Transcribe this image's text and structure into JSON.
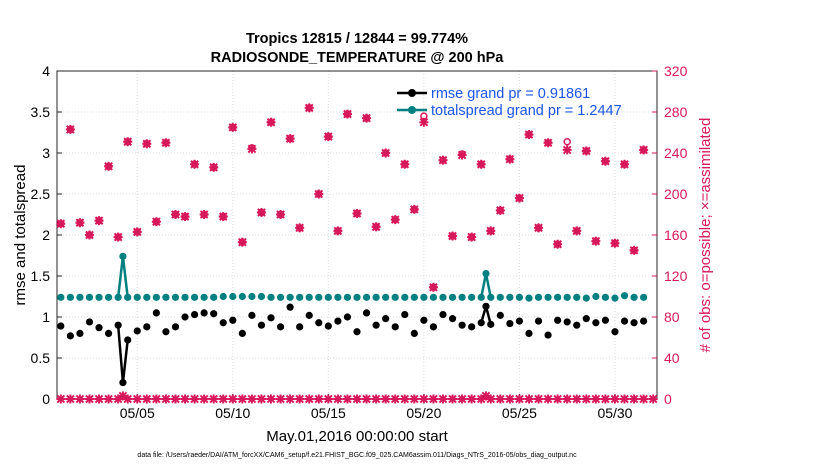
{
  "chart_data": {
    "type": "line",
    "title": "Tropics 12815 / 12844 = 99.774%",
    "subtitle": "RADIOSONDE_TEMPERATURE @ 200 hPa",
    "xlabel": "May.01,2016 00:00:00 start",
    "ylabel_left": "rmse and totalspread",
    "ylabel_right": "# of obs: o=possible; ×=assimilated",
    "footnote": "data file: /Users/raeder/DAI/ATM_forcXX/CAM6_setup/f.e21.FHIST_BGC.f09_025.CAM6assim.011/Diags_NTrS_2016-05/obs_diag_output.nc",
    "x_range": [
      0.8,
      32.2
    ],
    "x_ticks": [
      5,
      10,
      15,
      20,
      25,
      30
    ],
    "x_tick_labels": [
      "05/05",
      "05/10",
      "05/15",
      "05/20",
      "05/25",
      "05/30"
    ],
    "y_left_range": [
      0,
      4
    ],
    "y_left_ticks": [
      "0",
      "0.5",
      "1",
      "1.5",
      "2",
      "2.5",
      "3",
      "3.5",
      "4"
    ],
    "y_right_range": [
      0,
      320
    ],
    "y_right_ticks": [
      "0",
      "40",
      "80",
      "120",
      "160",
      "200",
      "240",
      "280",
      "320"
    ],
    "grid": true,
    "legend": {
      "position": "top-right",
      "rmse_label": "rmse grand pr = 0.91861",
      "spread_label": "totalspread grand pr = 1.2447"
    },
    "colors": {
      "rmse": "#000000",
      "totalspread": "#008080",
      "obs": "#d7185a",
      "legend_text": "#1a55e6"
    },
    "series": [
      {
        "name": "rmse grand pr = 0.91861",
        "axis": "left",
        "x": [
          1,
          1.5,
          2,
          2.5,
          3,
          3.5,
          4,
          4.25,
          4.5,
          5,
          5.5,
          6,
          6.5,
          7,
          7.5,
          8,
          8.5,
          9,
          9.5,
          10,
          10.5,
          11,
          11.5,
          12,
          12.5,
          13,
          13.5,
          14,
          14.5,
          15,
          15.5,
          16,
          16.5,
          17,
          17.5,
          18,
          18.5,
          19,
          19.5,
          20,
          20.5,
          21,
          21.5,
          22,
          22.5,
          23,
          23.25,
          23.5,
          24,
          24.5,
          25,
          25.5,
          26,
          26.5,
          27,
          27.5,
          28,
          28.5,
          29,
          29.5,
          30,
          30.5,
          31,
          31.5
        ],
        "values": [
          0.89,
          0.77,
          0.8,
          0.94,
          0.87,
          0.8,
          0.9,
          0.2,
          0.72,
          0.83,
          0.88,
          1.05,
          0.82,
          0.88,
          1,
          1.03,
          1.05,
          1.04,
          0.93,
          0.96,
          0.8,
          1.02,
          0.9,
          0.99,
          0.88,
          1.12,
          0.88,
          1.02,
          0.93,
          0.89,
          0.95,
          1,
          0.82,
          1.05,
          0.9,
          0.98,
          0.88,
          1.03,
          0.8,
          0.96,
          0.88,
          1.03,
          0.98,
          0.9,
          0.88,
          0.93,
          1.13,
          0.91,
          1.02,
          0.92,
          0.95,
          0.8,
          0.95,
          0.78,
          0.96,
          0.94,
          0.9,
          0.98,
          0.93,
          0.96,
          0.82,
          0.95,
          0.93,
          0.95
        ]
      },
      {
        "name": "totalspread grand pr = 1.2447",
        "axis": "left",
        "x": [
          1,
          1.5,
          2,
          2.5,
          3,
          3.5,
          4,
          4.25,
          4.5,
          5,
          5.5,
          6,
          6.5,
          7,
          7.5,
          8,
          8.5,
          9,
          9.5,
          10,
          10.5,
          11,
          11.5,
          12,
          12.5,
          13,
          13.5,
          14,
          14.5,
          15,
          15.5,
          16,
          16.5,
          17,
          17.5,
          18,
          18.5,
          19,
          19.5,
          20,
          20.5,
          21,
          21.5,
          22,
          22.5,
          23,
          23.25,
          23.5,
          24,
          24.5,
          25,
          25.5,
          26,
          26.5,
          27,
          27.5,
          28,
          28.5,
          29,
          29.5,
          30,
          30.5,
          31,
          31.5
        ],
        "values": [
          1.24,
          1.24,
          1.24,
          1.24,
          1.24,
          1.24,
          1.24,
          1.74,
          1.24,
          1.24,
          1.24,
          1.24,
          1.24,
          1.24,
          1.24,
          1.24,
          1.24,
          1.24,
          1.25,
          1.25,
          1.25,
          1.25,
          1.25,
          1.24,
          1.24,
          1.24,
          1.24,
          1.24,
          1.24,
          1.24,
          1.24,
          1.24,
          1.24,
          1.24,
          1.24,
          1.24,
          1.24,
          1.24,
          1.24,
          1.24,
          1.24,
          1.24,
          1.24,
          1.24,
          1.24,
          1.24,
          1.53,
          1.24,
          1.24,
          1.24,
          1.24,
          1.23,
          1.24,
          1.24,
          1.24,
          1.24,
          1.24,
          1.23,
          1.25,
          1.24,
          1.23,
          1.26,
          1.24,
          1.24
        ]
      },
      {
        "name": "",
        "axis": "right",
        "style": "markers",
        "x": [
          1,
          1.5,
          2,
          2.5,
          3,
          3.5,
          4,
          4.25,
          4.5,
          5,
          5.5,
          6,
          6.5,
          7,
          7.5,
          8,
          8.5,
          9,
          9.5,
          10,
          10.5,
          11,
          11.5,
          12,
          12.5,
          13,
          13.5,
          14,
          14.5,
          15,
          15.5,
          16,
          16.5,
          17,
          17.5,
          18,
          18.5,
          19,
          19.5,
          20,
          20.5,
          21,
          21.5,
          22,
          22.5,
          23,
          23.25,
          23.5,
          24,
          24.5,
          25,
          25.5,
          26,
          26.5,
          27,
          27.5,
          28,
          28.5,
          29,
          29.5,
          30,
          30.5,
          31,
          31.5
        ],
        "values": [
          171,
          263,
          172,
          160,
          174,
          227,
          158,
          0,
          251,
          163,
          249,
          173,
          250,
          180,
          178,
          229,
          180,
          226,
          178,
          265,
          153,
          244,
          182,
          270,
          180,
          254,
          167,
          284,
          200,
          256,
          164,
          278,
          181,
          274,
          168,
          240,
          175,
          229,
          185,
          270,
          109,
          233,
          159,
          238,
          158,
          229,
          0,
          164,
          184,
          234,
          196,
          258,
          167,
          250,
          151,
          243,
          164,
          242,
          154,
          232,
          152,
          229,
          145,
          243
        ]
      },
      {
        "name": "",
        "axis": "right",
        "style": "markers-open",
        "x": [
          1,
          1.5,
          2,
          2.5,
          3,
          3.5,
          4,
          4.25,
          4.5,
          5,
          5.5,
          6,
          6.5,
          7,
          7.5,
          8,
          8.5,
          9,
          9.5,
          10,
          10.5,
          11,
          11.5,
          12,
          12.5,
          13,
          13.5,
          14,
          14.5,
          15,
          15.5,
          16,
          16.5,
          17,
          17.5,
          18,
          18.5,
          19,
          19.5,
          20,
          20.5,
          21,
          21.5,
          22,
          22.5,
          23,
          23.25,
          23.5,
          24,
          24.5,
          25,
          25.5,
          26,
          26.5,
          27,
          27.5,
          28,
          28.5,
          29,
          29.5,
          30,
          30.5,
          31,
          31.5
        ],
        "values": [
          171,
          263,
          172,
          160,
          174,
          227,
          158,
          0,
          251,
          163,
          249,
          173,
          250,
          180,
          178,
          229,
          180,
          226,
          178,
          265,
          153,
          245,
          182,
          270,
          180,
          254,
          167,
          284,
          200,
          256,
          164,
          278,
          181,
          274,
          168,
          240,
          175,
          229,
          185,
          276,
          109,
          233,
          159,
          239,
          158,
          229,
          0,
          164,
          184,
          234,
          196,
          258,
          167,
          250,
          151,
          251,
          164,
          242,
          154,
          232,
          152,
          229,
          145,
          243
        ]
      }
    ],
    "obs_zero_x": [
      1,
      1.5,
      2,
      2.5,
      3,
      3.5,
      4,
      4.5,
      5,
      5.5,
      6,
      6.5,
      7,
      7.5,
      8,
      8.5,
      9,
      9.5,
      10,
      10.5,
      11,
      11.5,
      12,
      12.5,
      13,
      13.5,
      14,
      14.5,
      15,
      15.5,
      16,
      16.5,
      17,
      17.5,
      18,
      18.5,
      19,
      19.5,
      20,
      20.5,
      21,
      21.5,
      22,
      22.5,
      23,
      23.5,
      24,
      24.5,
      25,
      25.5,
      26,
      26.5,
      27,
      27.5,
      28,
      28.5,
      29,
      29.5,
      30,
      30.5,
      31,
      31.5,
      32
    ],
    "obs_zero_bumps": [
      {
        "x": 4.25,
        "v": 3
      },
      {
        "x": 23.25,
        "v": 3
      }
    ]
  }
}
